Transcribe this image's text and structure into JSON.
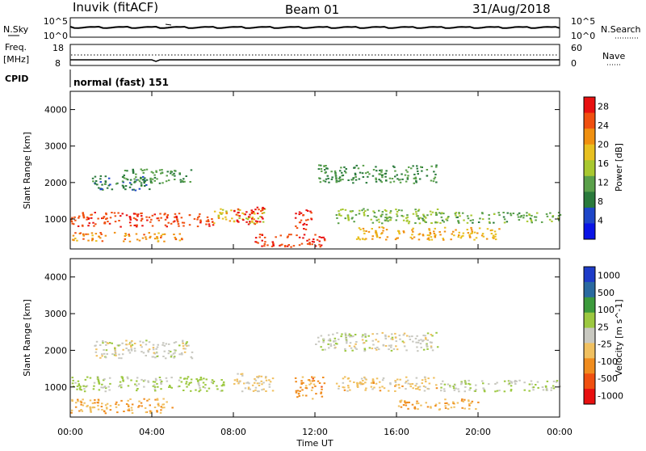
{
  "header": {
    "station": "Inuvik (fitACF)",
    "beam": "Beam 01",
    "date": "31/Aug/2018"
  },
  "strips": {
    "nsky_label": "N.Sky",
    "nsky_ticks": [
      "10^5",
      "10^0"
    ],
    "nsearch_label": "N.Search",
    "nsearch_ticks": [
      "10^5",
      "10^0"
    ],
    "freq_label": "Freq.",
    "freq_unit": "[MHz]",
    "freq_ticks": [
      "18",
      "8"
    ],
    "nave_label": "Nave",
    "nave_ticks": [
      "60",
      "0"
    ],
    "cpid_label": "CPID",
    "cpid_value": "normal (fast) 151"
  },
  "colors": {
    "power_scale": [
      "#0a14e6",
      "#1e46c8",
      "#2a7a3c",
      "#5aa04a",
      "#a8c830",
      "#e8c020",
      "#f09010",
      "#f05010",
      "#e81010"
    ],
    "velocity_scale": [
      "#e81010",
      "#f05010",
      "#f08c1e",
      "#f0c060",
      "#c8c8c0",
      "#9cc840",
      "#3c9a3c",
      "#2a6aa0",
      "#1e3cc8"
    ]
  },
  "chart_data": [
    {
      "type": "heatmap",
      "panel": "power",
      "ylabel": "Slant Range [km]",
      "yticks": [
        "1000",
        "2000",
        "3000",
        "4000"
      ],
      "ylim": [
        180,
        4500
      ],
      "xlabel": "Time UT",
      "xticks": [
        "00:00",
        "04:00",
        "08:00",
        "12:00",
        "16:00",
        "20:00",
        "00:00"
      ],
      "xlim_hours": [
        0,
        24
      ],
      "colorbar": {
        "label": "Power [dB]",
        "ticks": [
          "4",
          "8",
          "12",
          "16",
          "20",
          "24",
          "28"
        ],
        "range": [
          0,
          30
        ]
      },
      "regions": [
        {
          "t": [
            0.0,
            7.0
          ],
          "r": [
            800,
            1200
          ],
          "v": 26
        },
        {
          "t": [
            7.0,
            9.5
          ],
          "r": [
            900,
            1300
          ],
          "v": 18
        },
        {
          "t": [
            8.0,
            9.5
          ],
          "r": [
            850,
            1350
          ],
          "v": 28
        },
        {
          "t": [
            11.0,
            11.8
          ],
          "r": [
            700,
            1300
          ],
          "v": 28
        },
        {
          "t": [
            9.0,
            12.5
          ],
          "r": [
            250,
            600
          ],
          "v": 26
        },
        {
          "t": [
            0.0,
            5.5
          ],
          "r": [
            400,
            650
          ],
          "v": 22
        },
        {
          "t": [
            13.0,
            18.0
          ],
          "r": [
            900,
            1300
          ],
          "v": 14
        },
        {
          "t": [
            17.0,
            24.0
          ],
          "r": [
            900,
            1200
          ],
          "v": 12
        },
        {
          "t": [
            14.0,
            21.0
          ],
          "r": [
            450,
            800
          ],
          "v": 20
        },
        {
          "t": [
            1.0,
            4.0
          ],
          "r": [
            1800,
            2200
          ],
          "v": 8
        },
        {
          "t": [
            2.5,
            6.0
          ],
          "r": [
            2000,
            2400
          ],
          "v": 10
        },
        {
          "t": [
            12.0,
            18.0
          ],
          "r": [
            2000,
            2500
          ],
          "v": 10
        }
      ]
    },
    {
      "type": "heatmap",
      "panel": "velocity",
      "ylabel": "Slant Range [km]",
      "yticks": [
        "1000",
        "2000",
        "3000",
        "4000"
      ],
      "ylim": [
        180,
        4500
      ],
      "xlabel": "Time UT",
      "xticks": [
        "00:00",
        "04:00",
        "08:00",
        "12:00",
        "16:00",
        "20:00",
        "00:00"
      ],
      "xlim_hours": [
        0,
        24
      ],
      "colorbar": {
        "label": "Velocity [m s^-1]",
        "ticks": [
          "1000",
          "500",
          "100",
          "25",
          "-25",
          "-100",
          "-500",
          "-1000"
        ],
        "range": [
          -1000,
          1000
        ]
      },
      "regions": [
        {
          "t": [
            0.0,
            7.5
          ],
          "r": [
            900,
            1300
          ],
          "v": 150
        },
        {
          "t": [
            0.0,
            5.0
          ],
          "r": [
            300,
            700
          ],
          "v": -300
        },
        {
          "t": [
            8.0,
            10.0
          ],
          "r": [
            900,
            1400
          ],
          "v": -150
        },
        {
          "t": [
            11.0,
            12.5
          ],
          "r": [
            700,
            1300
          ],
          "v": -400
        },
        {
          "t": [
            13.0,
            18.0
          ],
          "r": [
            900,
            1300
          ],
          "v": -200
        },
        {
          "t": [
            16.0,
            20.0
          ],
          "r": [
            400,
            700
          ],
          "v": -300
        },
        {
          "t": [
            18.0,
            24.0
          ],
          "r": [
            900,
            1200
          ],
          "v": 80
        },
        {
          "t": [
            1.0,
            6.0
          ],
          "r": [
            1800,
            2300
          ],
          "v": 0
        },
        {
          "t": [
            12.0,
            18.0
          ],
          "r": [
            2000,
            2500
          ],
          "v": 0
        }
      ]
    }
  ]
}
